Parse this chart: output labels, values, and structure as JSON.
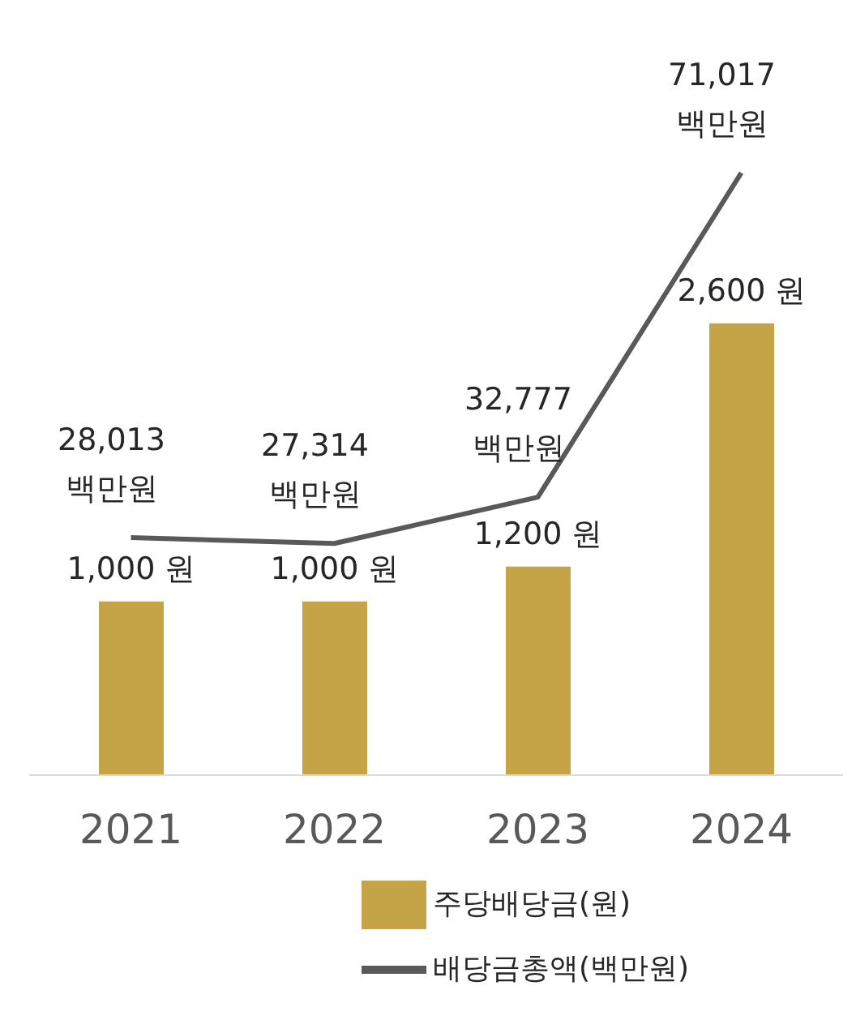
{
  "chart_data": {
    "type": "bar",
    "categories": [
      "2021",
      "2022",
      "2023",
      "2024"
    ],
    "series": [
      {
        "name": "주당배당금(원)",
        "color": "#c4a447",
        "values": [
          1000,
          1000,
          1200,
          2600
        ],
        "value_labels": [
          "1,000 원",
          "1,000 원",
          "1,200 원",
          "2,600 원"
        ]
      },
      {
        "name": "배당금총액(백만원)",
        "type": "line",
        "axis": "y2",
        "color": "#595959",
        "values": [
          28013,
          27314,
          32777,
          71017
        ],
        "value_labels": [
          "28,013 백만원",
          "27,314 백만원",
          "32,777 백만원",
          "71,017 백만원"
        ]
      }
    ],
    "legend": "bottom",
    "marker": "none"
  }
}
